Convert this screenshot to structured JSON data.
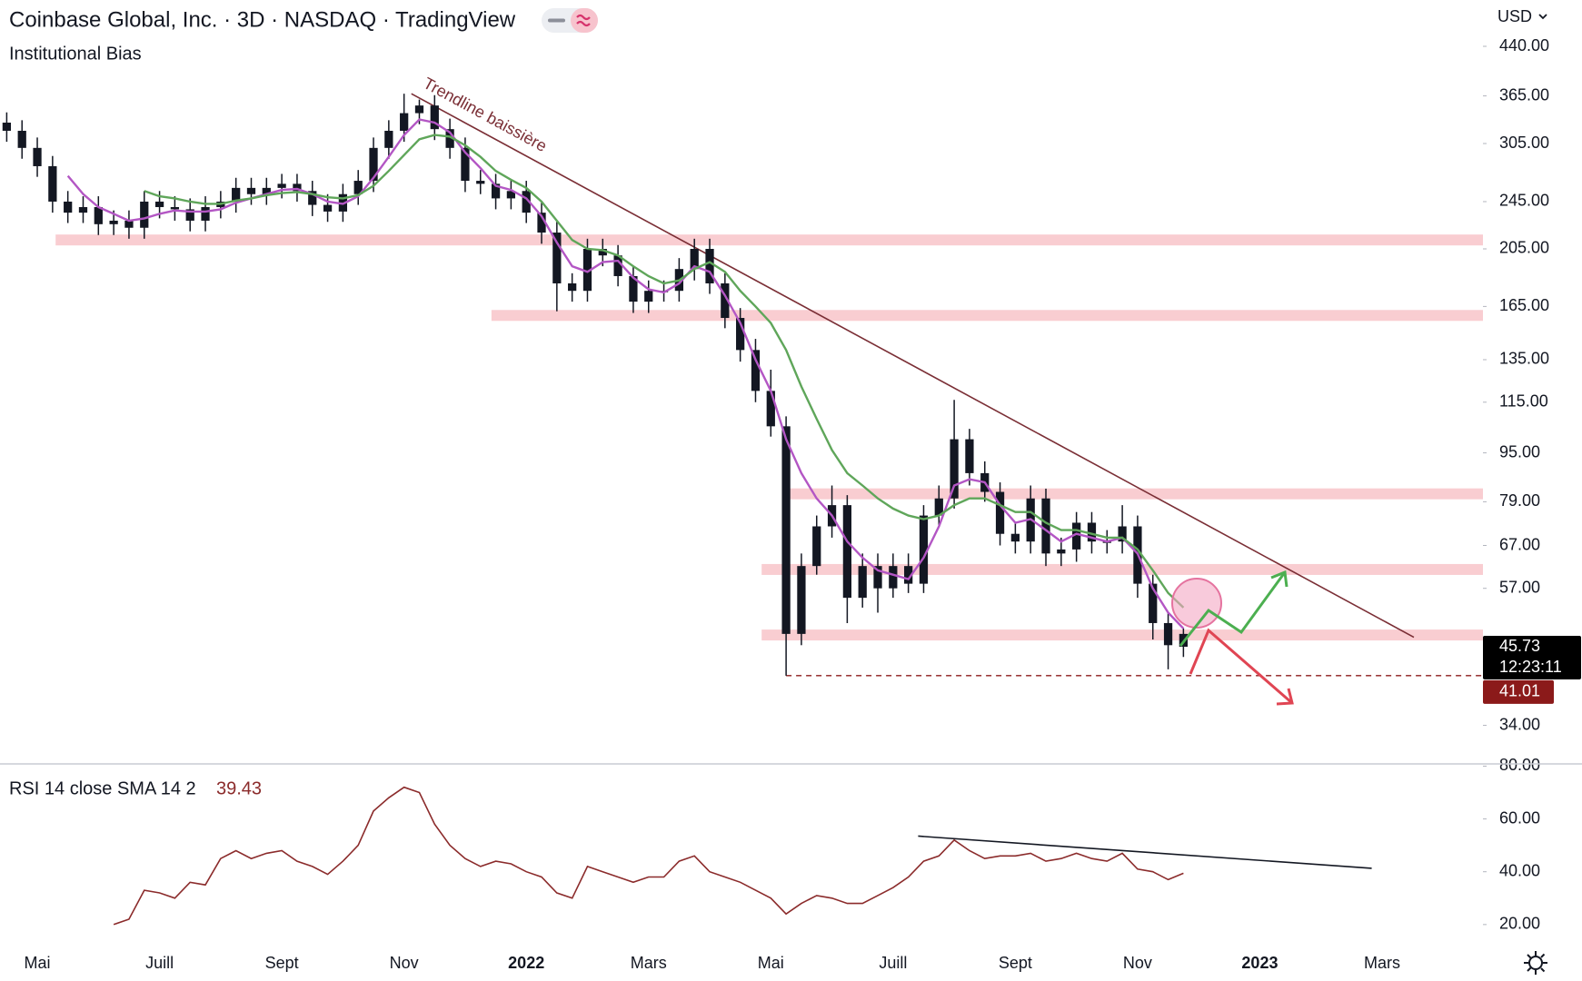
{
  "chart_data": [
    {
      "type": "candlestick",
      "title": "Coinbase Global, Inc. · 3D · NASDAQ · TradingView",
      "subtitle": "Institutional Bias",
      "currency": "USD",
      "color": "#131722",
      "log_scale": true,
      "x": [
        -0.5,
        -0.25,
        0,
        0.25,
        0.5,
        0.75,
        1,
        1.25,
        1.5,
        1.75,
        2,
        2.25,
        2.5,
        2.75,
        3,
        3.25,
        3.5,
        3.75,
        4,
        4.25,
        4.5,
        4.75,
        5,
        5.25,
        5.5,
        5.75,
        6,
        6.25,
        6.5,
        6.75,
        7,
        7.25,
        7.5,
        7.75,
        8,
        8.25,
        8.5,
        8.75,
        9,
        9.25,
        9.5,
        9.75,
        10,
        10.25,
        10.5,
        10.75,
        11,
        11.25,
        11.5,
        11.75,
        12,
        12.25,
        12.5,
        12.75,
        13,
        13.25,
        13.5,
        13.75,
        14,
        14.25,
        14.5,
        14.75,
        15,
        15.25,
        15.5,
        15.75,
        16,
        16.25,
        16.5,
        16.75,
        17,
        17.25,
        17.5,
        17.75,
        18,
        18.25,
        18.5,
        18.75
      ],
      "open": [
        330,
        320,
        300,
        280,
        245,
        235,
        240,
        225,
        228,
        222,
        245,
        240,
        238,
        228,
        240,
        245,
        258,
        252,
        258,
        262,
        255,
        242,
        236,
        252,
        265,
        300,
        320,
        342,
        352,
        322,
        300,
        265,
        262,
        248,
        255,
        235,
        218,
        180,
        175,
        205,
        200,
        185,
        168,
        175,
        175,
        190,
        205,
        180,
        158,
        140,
        120,
        105,
        48,
        62,
        72,
        78,
        55,
        62,
        57,
        62,
        58,
        75,
        80,
        100,
        88,
        82,
        70,
        68,
        80,
        65,
        66,
        73,
        68,
        68,
        72,
        58,
        50,
        48
      ],
      "high": [
        343,
        333,
        312,
        291,
        255,
        250,
        250,
        237,
        237,
        255,
        255,
        250,
        248,
        250,
        255,
        268,
        268,
        268,
        272,
        272,
        265,
        252,
        262,
        276,
        312,
        333,
        368,
        360,
        366,
        335,
        312,
        276,
        272,
        265,
        265,
        244,
        227,
        187,
        213,
        213,
        208,
        192,
        182,
        182,
        198,
        213,
        213,
        187,
        164,
        146,
        130,
        109,
        65,
        75,
        84,
        81,
        65,
        65,
        65,
        65,
        78,
        84,
        116,
        104,
        92,
        85,
        73,
        84,
        83,
        69,
        76,
        76,
        71,
        78,
        75,
        60,
        52,
        49
      ],
      "low": [
        307,
        288,
        269,
        235,
        226,
        226,
        216,
        216,
        213,
        213,
        230,
        228,
        219,
        219,
        230,
        235,
        242,
        242,
        248,
        245,
        232,
        227,
        227,
        242,
        254,
        288,
        307,
        328,
        309,
        288,
        254,
        252,
        238,
        238,
        226,
        209,
        162,
        168,
        168,
        192,
        178,
        161,
        161,
        168,
        168,
        182,
        173,
        152,
        134,
        115,
        101,
        41.01,
        46,
        60,
        69,
        50,
        53,
        52,
        55,
        56,
        56,
        72,
        77,
        84,
        79,
        67,
        65,
        65,
        62,
        62,
        63,
        65,
        65,
        65,
        55,
        47,
        42,
        44
      ],
      "close": [
        320,
        300,
        280,
        245,
        235,
        240,
        225,
        228,
        222,
        245,
        240,
        238,
        228,
        240,
        245,
        258,
        252,
        258,
        262,
        255,
        242,
        236,
        252,
        265,
        300,
        320,
        342,
        352,
        322,
        300,
        265,
        262,
        248,
        255,
        235,
        218,
        180,
        175,
        205,
        200,
        185,
        168,
        175,
        175,
        190,
        205,
        180,
        158,
        140,
        120,
        105,
        48,
        62,
        72,
        78,
        55,
        62,
        57,
        62,
        58,
        75,
        80,
        100,
        88,
        82,
        70,
        68,
        80,
        65,
        66,
        73,
        68,
        68,
        72,
        58,
        50,
        46,
        45.73
      ],
      "overlays": [
        {
          "color": "#b356c4",
          "values": [
            null,
            null,
            null,
            null,
            270,
            252,
            240,
            234,
            228,
            230,
            234,
            237,
            236,
            236,
            238,
            244,
            248,
            252,
            256,
            257,
            252,
            245,
            243,
            250,
            268,
            290,
            315,
            334,
            330,
            318,
            295,
            278,
            260,
            256,
            248,
            232,
            210,
            192,
            188,
            195,
            196,
            184,
            176,
            174,
            180,
            192,
            188,
            172,
            155,
            135,
            120,
            100,
            88,
            80,
            75,
            68,
            64,
            61,
            60,
            59,
            64,
            72,
            84,
            86,
            85,
            78,
            73,
            74,
            71,
            68,
            70,
            69,
            68,
            69,
            65,
            57,
            52,
            49
          ]
        },
        {
          "color": "#5fa65a",
          "values": [
            null,
            null,
            null,
            null,
            null,
            null,
            null,
            null,
            null,
            255,
            250,
            248,
            245,
            243,
            243,
            246,
            248,
            251,
            253,
            254,
            252,
            249,
            248,
            251,
            260,
            275,
            292,
            310,
            315,
            313,
            303,
            290,
            275,
            266,
            258,
            245,
            228,
            212,
            205,
            204,
            200,
            192,
            185,
            180,
            182,
            190,
            195,
            188,
            175,
            165,
            155,
            140,
            122,
            108,
            96,
            88,
            84,
            80,
            77,
            75,
            74,
            75,
            78,
            80,
            80,
            78,
            76,
            76,
            73,
            71,
            71,
            70,
            69,
            69,
            66,
            61,
            56,
            53
          ]
        }
      ],
      "xlim": [
        -0.61,
        23.65
      ],
      "xticks": [
        {
          "value": 0,
          "label": "Mai"
        },
        {
          "value": 2,
          "label": "Juill"
        },
        {
          "value": 4,
          "label": "Sept"
        },
        {
          "value": 6,
          "label": "Nov"
        },
        {
          "value": 8,
          "label": "2022"
        },
        {
          "value": 10,
          "label": "Mars"
        },
        {
          "value": 12,
          "label": "Mai"
        },
        {
          "value": 14,
          "label": "Juill"
        },
        {
          "value": 16,
          "label": "Sept"
        },
        {
          "value": 18,
          "label": "Nov"
        },
        {
          "value": 20,
          "label": "2023"
        },
        {
          "value": 22,
          "label": "Mars"
        }
      ],
      "ylim": [
        29.5,
        524
      ],
      "yticks": [
        {
          "value": 440,
          "label": "440.00"
        },
        {
          "value": 365,
          "label": "365.00"
        },
        {
          "value": 305,
          "label": "305.00"
        },
        {
          "value": 245,
          "label": "245.00"
        },
        {
          "value": 205,
          "label": "205.00"
        },
        {
          "value": 165,
          "label": "165.00"
        },
        {
          "value": 135,
          "label": "135.00"
        },
        {
          "value": 115,
          "label": "115.00"
        },
        {
          "value": 95,
          "label": "95.00"
        },
        {
          "value": 79,
          "label": "79.00"
        },
        {
          "value": 67,
          "label": "67.00"
        },
        {
          "value": 57,
          "label": "57.00"
        },
        {
          "value": 34,
          "label": "34.00"
        }
      ],
      "last_price": 45.73,
      "countdown": "12:23:11",
      "low_marker": 41.01,
      "zones": {
        "color": "#f9cdd1",
        "levels": [
          {
            "value": 212,
            "x_start": 0.3
          },
          {
            "value": 159.5,
            "x_start": 7.43
          },
          {
            "value": 81.4,
            "x_start": 12.21
          },
          {
            "value": 61.2,
            "x_start": 11.85
          },
          {
            "value": 47.8,
            "x_start": 11.85
          }
        ]
      },
      "trendline": {
        "label": "Trendline baissière",
        "color": "#7a2e35",
        "x": [
          6.12,
          22.52
        ],
        "y": [
          368,
          47.4
        ]
      }
    },
    {
      "type": "line",
      "title": "RSI 14 close SMA 14 2",
      "x": [
        -0.5,
        -0.25,
        0,
        0.25,
        0.5,
        0.75,
        1,
        1.25,
        1.5,
        1.75,
        2,
        2.25,
        2.5,
        2.75,
        3,
        3.25,
        3.5,
        3.75,
        4,
        4.25,
        4.5,
        4.75,
        5,
        5.25,
        5.5,
        5.75,
        6,
        6.25,
        6.5,
        6.75,
        7,
        7.25,
        7.5,
        7.75,
        8,
        8.25,
        8.5,
        8.75,
        9,
        9.25,
        9.5,
        9.75,
        10,
        10.25,
        10.5,
        10.75,
        11,
        11.25,
        11.5,
        11.75,
        12,
        12.25,
        12.5,
        12.75,
        13,
        13.25,
        13.5,
        13.75,
        14,
        14.25,
        14.5,
        14.75,
        15,
        15.25,
        15.5,
        15.75,
        16,
        16.25,
        16.5,
        16.75,
        17,
        17.25,
        17.5,
        17.75,
        18,
        18.25,
        18.5,
        18.75
      ],
      "series": [
        {
          "color": "#8b2b2b",
          "values": [
            null,
            null,
            null,
            null,
            null,
            null,
            null,
            20,
            22,
            33,
            32,
            30,
            36,
            35,
            45,
            48,
            45,
            47,
            48,
            44,
            42,
            39,
            44,
            50,
            63,
            68,
            72,
            70,
            58,
            50,
            45,
            42,
            44,
            43,
            40,
            38,
            32,
            30,
            42,
            40,
            38,
            36,
            38,
            38,
            44,
            46,
            40,
            38,
            36,
            33,
            30,
            24,
            28,
            31,
            30,
            28,
            28,
            31,
            34,
            38,
            44,
            46,
            52,
            48,
            45,
            46,
            46,
            47,
            44,
            45,
            47,
            45,
            44,
            47,
            41,
            40,
            37,
            39.43
          ]
        }
      ],
      "ylim": [
        11,
        80.5
      ],
      "yticks": [
        {
          "value": 80,
          "label": "80.00"
        },
        {
          "value": 60,
          "label": "60.00"
        },
        {
          "value": 40,
          "label": "40.00"
        },
        {
          "value": 20,
          "label": "20.00"
        }
      ],
      "trendline": {
        "color": "#131722",
        "x": [
          14.41,
          21.83
        ],
        "y": [
          53.5,
          41.3
        ]
      }
    }
  ]
}
